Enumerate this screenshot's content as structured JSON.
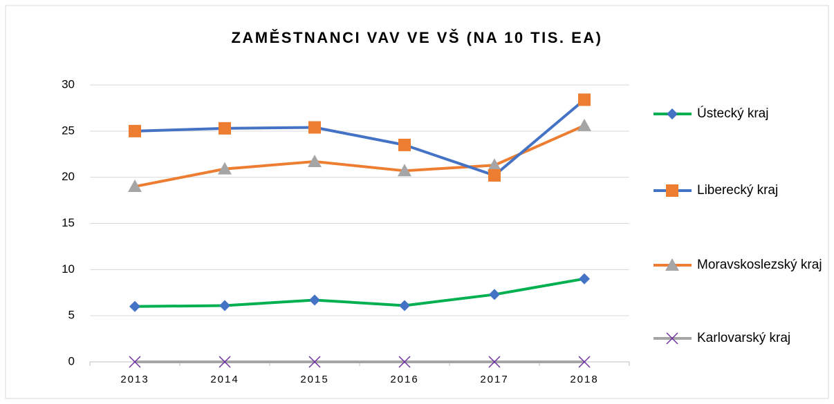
{
  "chart_data": {
    "type": "line",
    "title": "ZAMĚSTNANCI VAV VE VŠ (NA 10 TIS. EA)",
    "categories": [
      "2013",
      "2014",
      "2015",
      "2016",
      "2017",
      "2018"
    ],
    "series": [
      {
        "name": "Ústecký kraj",
        "color": "#00b050",
        "marker": "diamond",
        "marker_color": "#4472c4",
        "values": [
          6.0,
          6.1,
          6.7,
          6.1,
          7.3,
          9.0
        ]
      },
      {
        "name": "Liberecký kraj",
        "color": "#4472c4",
        "marker": "square",
        "marker_color": "#ed7d31",
        "values": [
          25.0,
          25.3,
          25.4,
          23.5,
          20.2,
          28.4
        ]
      },
      {
        "name": "Moravskoslezský kraj",
        "color": "#ed7d31",
        "marker": "triangle",
        "marker_color": "#a5a5a5",
        "values": [
          19.0,
          20.9,
          21.7,
          20.7,
          21.3,
          25.6
        ]
      },
      {
        "name": "Karlovarský kraj",
        "color": "#a5a5a5",
        "marker": "x",
        "marker_color": "#7030a0",
        "values": [
          0,
          0,
          0,
          0,
          0,
          0
        ]
      }
    ],
    "ylim": [
      0,
      30
    ],
    "yticks": [
      0,
      5,
      10,
      15,
      20,
      25,
      30
    ],
    "grid": true,
    "legend": "right"
  }
}
